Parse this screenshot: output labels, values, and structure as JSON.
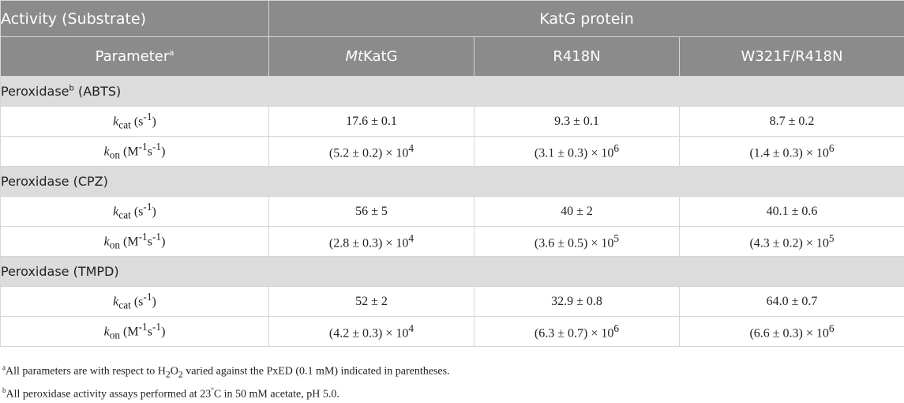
{
  "table": {
    "header": {
      "activity": "Activity (Substrate)",
      "protein_group": "KatG protein",
      "parameter": "Parameter",
      "parameter_sup": "a",
      "col_mtkatg_italic": "Mt",
      "col_mtkatg_rest": "KatG",
      "col_r418n": "R418N",
      "col_w321f": "W321F/R418N"
    },
    "sections": [
      {
        "title": "Peroxidase",
        "title_sup": "b",
        "title_rest": " (ABTS)",
        "kcat": {
          "sym": "k",
          "sub": "cat",
          "unit_pre": " (s",
          "unit_sup": "-1",
          "unit_post": ")",
          "v1": "17.6 ± 0.1",
          "v2": "9.3 ± 0.1",
          "v3": "8.7 ± 0.2"
        },
        "kon": {
          "sym": "k",
          "sub": "on",
          "unit_pre": " (M",
          "unit_sup1": "-1",
          "unit_mid": "s",
          "unit_sup2": "-1",
          "unit_post": ")",
          "v1": "(5.2 ± 0.2) × 10",
          "e1": "4",
          "v2": "(3.1 ± 0.3) × 10",
          "e2": "6",
          "v3": "(1.4 ± 0.3) × 10",
          "e3": "6"
        }
      },
      {
        "title": "Peroxidase (CPZ)",
        "title_sup": "",
        "title_rest": "",
        "kcat": {
          "sym": "k",
          "sub": "cat",
          "unit_pre": " (s",
          "unit_sup": "-1",
          "unit_post": ")",
          "v1": "56 ± 5",
          "v2": "40 ± 2",
          "v3": "40.1 ± 0.6"
        },
        "kon": {
          "sym": "k",
          "sub": "on",
          "unit_pre": " (M",
          "unit_sup1": "-1",
          "unit_mid": "s",
          "unit_sup2": "-1",
          "unit_post": ")",
          "v1": "(2.8 ± 0.3) × 10",
          "e1": "4",
          "v2": "(3.6 ± 0.5) × 10",
          "e2": "5",
          "v3": "(4.3 ± 0.2) × 10",
          "e3": "5"
        }
      },
      {
        "title": "Peroxidase (TMPD)",
        "title_sup": "",
        "title_rest": "",
        "kcat": {
          "sym": "k",
          "sub": "cat",
          "unit_pre": " (s",
          "unit_sup": "-1",
          "unit_post": ")",
          "v1": "52 ± 2",
          "v2": "32.9 ± 0.8",
          "v3": "64.0 ± 0.7"
        },
        "kon": {
          "sym": "k",
          "sub": "on",
          "unit_pre": " (M",
          "unit_sup1": "-1",
          "unit_mid": "s",
          "unit_sup2": "-1",
          "unit_post": ")",
          "v1": "(4.2 ± 0.3) × 10",
          "e1": "4",
          "v2": "(6.3 ± 0.7) × 10",
          "e2": "6",
          "v3": "(6.6 ± 0.3) × 10",
          "e3": "6"
        }
      }
    ]
  },
  "footnotes": {
    "a_mark": "a",
    "a_pre": "All parameters are with respect to H",
    "a_sub1": "2",
    "a_mid": "O",
    "a_sub2": "2",
    "a_post": " varied against the PxED (0.1 mM) indicated in parentheses.",
    "b_mark": "b",
    "b_pre": "All peroxidase activity assays performed at 23",
    "b_deg": "°",
    "b_post": "C in 50 mM acetate, pH 5.0."
  }
}
